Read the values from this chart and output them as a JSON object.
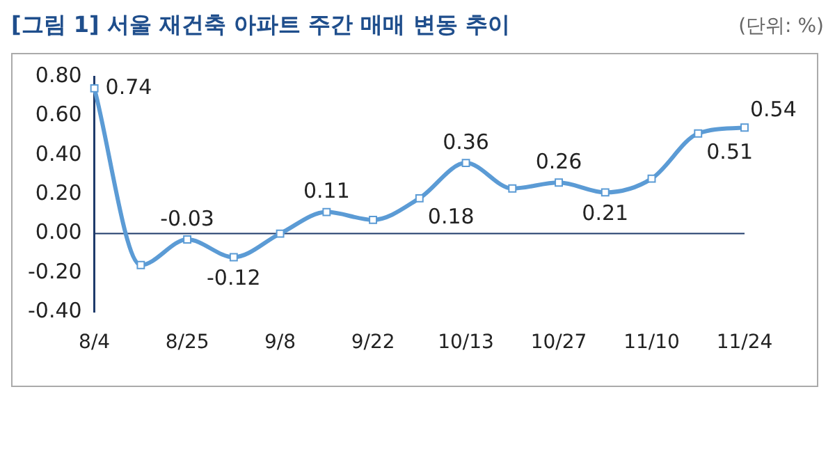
{
  "chart_data": {
    "type": "line",
    "title": "[그림 1] 서울 재건축 아파트 주간 매매 변동 추이",
    "annotations": [
      "(단위: %)"
    ],
    "categories": [
      "8/4",
      null,
      "8/25",
      null,
      "9/8",
      null,
      "9/22",
      null,
      "10/13",
      null,
      "10/27",
      null,
      "11/10",
      null,
      "11/24"
    ],
    "series": [
      {
        "color": "#5b9bd5",
        "values": [
          0.74,
          -0.16,
          -0.03,
          -0.12,
          0.0,
          0.11,
          0.07,
          0.18,
          0.36,
          0.23,
          0.26,
          0.21,
          0.28,
          0.51,
          0.54
        ],
        "value_labels": [
          "0.74",
          null,
          "-0.03",
          "-0.12",
          null,
          "0.11",
          null,
          "0.18",
          "0.36",
          null,
          "0.26",
          "0.21",
          null,
          "0.51",
          "0.54"
        ]
      }
    ],
    "ylim": [
      -0.4,
      0.8
    ],
    "yticks": [
      {
        "value": -0.4,
        "label": "-0.40"
      },
      {
        "value": -0.2,
        "label": "-0.20"
      },
      {
        "value": 0,
        "label": "0.00"
      },
      {
        "value": 0.2,
        "label": "0.20"
      },
      {
        "value": 0.4,
        "label": "0.40"
      },
      {
        "value": 0.6,
        "label": "0.60"
      },
      {
        "value": 0.8,
        "label": "0.80"
      }
    ],
    "ref_lines": [
      {
        "axis": "y",
        "value": 0,
        "color": "#1f3b6b"
      }
    ],
    "marker": "square",
    "line_style": "solid",
    "grid": false,
    "legend": false
  }
}
